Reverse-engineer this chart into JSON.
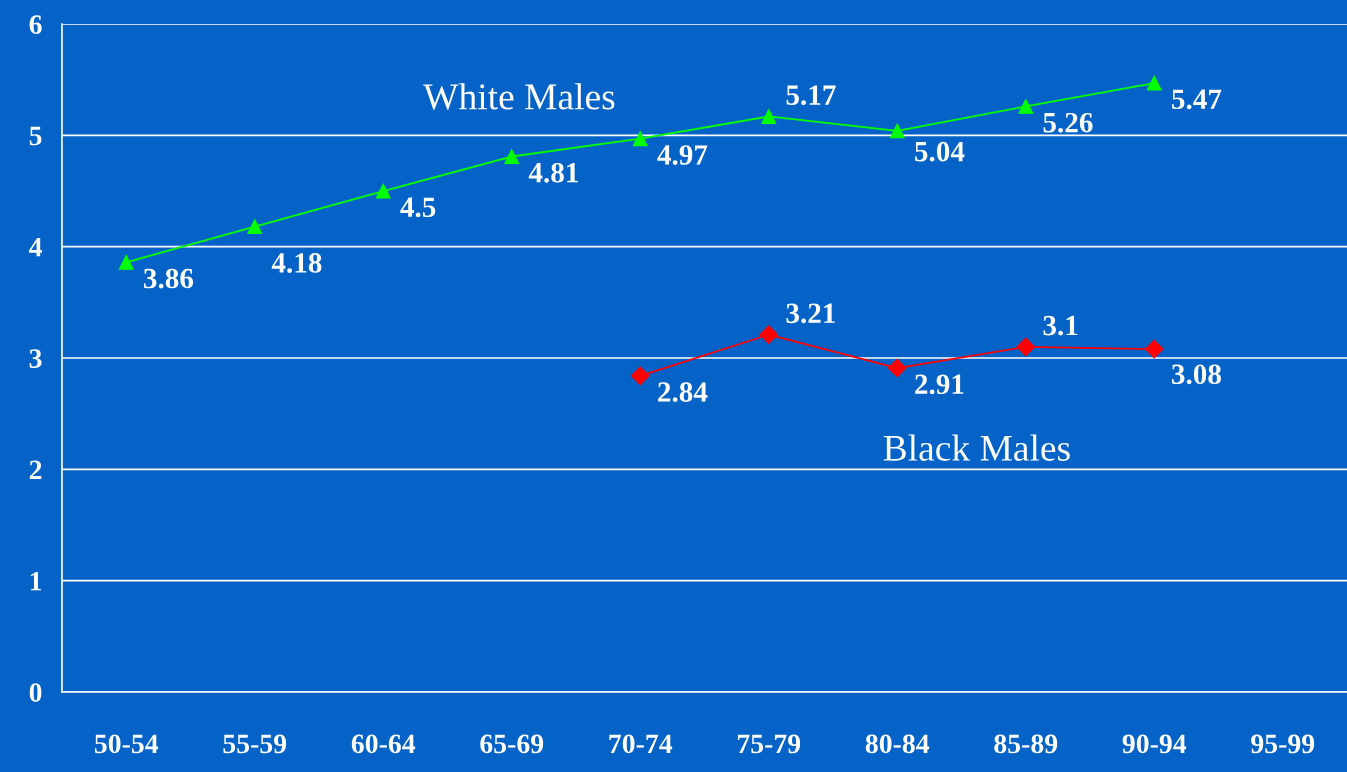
{
  "chart_data": {
    "type": "line",
    "categories": [
      "50-54",
      "55-59",
      "60-64",
      "65-69",
      "70-74",
      "75-79",
      "80-84",
      "85-89",
      "90-94",
      "95-99"
    ],
    "series": [
      {
        "name": "White Males",
        "color": "#00ff00",
        "marker": "triangle",
        "values": [
          3.86,
          4.18,
          4.5,
          4.81,
          4.97,
          5.17,
          5.04,
          5.26,
          5.47,
          null
        ]
      },
      {
        "name": "Black Males",
        "color": "#ff0000",
        "marker": "diamond",
        "values": [
          null,
          null,
          null,
          null,
          2.84,
          3.21,
          2.91,
          3.1,
          3.08,
          null
        ]
      }
    ],
    "ylim": [
      0,
      6
    ],
    "yticks": [
      0,
      1,
      2,
      3,
      4,
      5,
      6
    ],
    "grid": "y",
    "data_labels": true,
    "legend": false
  }
}
